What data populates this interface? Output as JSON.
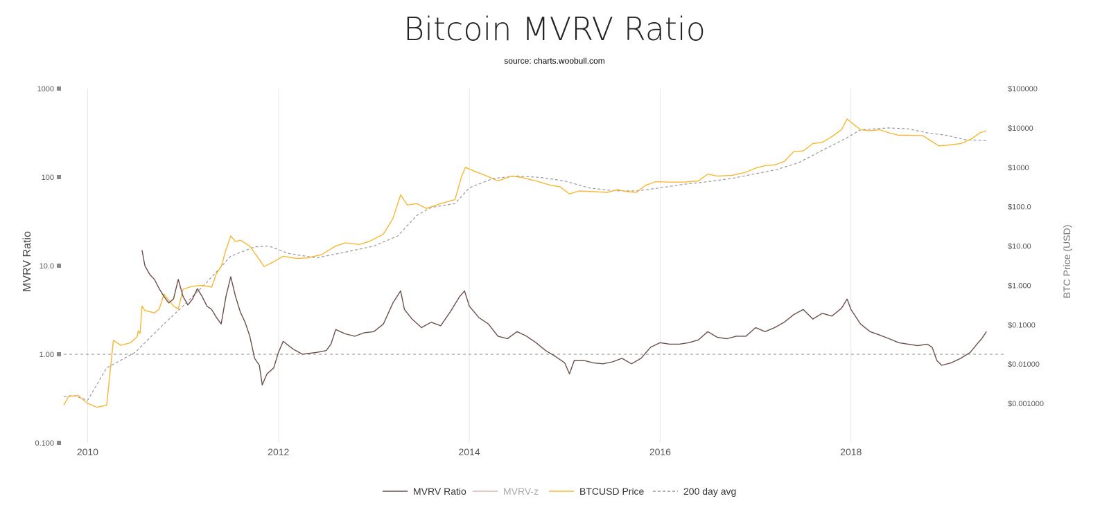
{
  "title": "Bitcoin MVRV Ratio",
  "subtitle": "source: charts.woobull.com",
  "chart_data": {
    "type": "line",
    "title": "Bitcoin MVRV Ratio",
    "subtitle": "source: charts.woobull.com",
    "ylabel_left": "MVRV Ratio",
    "ylabel_right": "BTC Price (USD)",
    "x_range": [
      2009.75,
      2019.6
    ],
    "y_left_log_range": [
      0.1,
      1000
    ],
    "y_right_log_range": [
      0.0001,
      100000
    ],
    "y_left_scale": "log",
    "y_right_scale": "log",
    "grid_x": true,
    "grid_y": false,
    "legend_position": "bottom-center",
    "x_ticks": [
      "2010",
      "2012",
      "2014",
      "2016",
      "2018"
    ],
    "x_tick_values": [
      2010,
      2012,
      2014,
      2016,
      2018
    ],
    "y_left_ticks": [
      "1000",
      "100",
      "10.0",
      "1.00",
      "0.100"
    ],
    "y_left_tick_values": [
      1000,
      100,
      10,
      1,
      0.1
    ],
    "y_right_ticks": [
      "$100000",
      "$10000",
      "$1000",
      "$100.0",
      "$10.00",
      "$1.000",
      "$0.1000",
      "$0.01000",
      "$0.001000"
    ],
    "y_right_tick_values": [
      100000,
      10000,
      1000,
      100,
      10,
      1,
      0.1,
      0.01,
      0.001
    ],
    "reference_line": {
      "axis": "left",
      "value": 1.0,
      "style": "dashed"
    },
    "series": [
      {
        "name": "MVRV Ratio",
        "axis": "left",
        "color": "#6b4f4a",
        "style": "solid",
        "points": [
          [
            2010.57,
            15
          ],
          [
            2010.6,
            10
          ],
          [
            2010.65,
            8
          ],
          [
            2010.7,
            7
          ],
          [
            2010.75,
            5.5
          ],
          [
            2010.8,
            4.5
          ],
          [
            2010.85,
            3.8
          ],
          [
            2010.9,
            4.2
          ],
          [
            2010.95,
            7
          ],
          [
            2011.0,
            4.5
          ],
          [
            2011.05,
            3.6
          ],
          [
            2011.1,
            4.2
          ],
          [
            2011.15,
            5.5
          ],
          [
            2011.2,
            4.5
          ],
          [
            2011.25,
            3.5
          ],
          [
            2011.3,
            3.2
          ],
          [
            2011.35,
            2.6
          ],
          [
            2011.4,
            2.2
          ],
          [
            2011.45,
            4.5
          ],
          [
            2011.5,
            7.5
          ],
          [
            2011.55,
            4.5
          ],
          [
            2011.6,
            3.0
          ],
          [
            2011.65,
            2.3
          ],
          [
            2011.7,
            1.6
          ],
          [
            2011.75,
            0.9
          ],
          [
            2011.8,
            0.75
          ],
          [
            2011.83,
            0.45
          ],
          [
            2011.88,
            0.6
          ],
          [
            2011.95,
            0.7
          ],
          [
            2012.0,
            1.05
          ],
          [
            2012.05,
            1.4
          ],
          [
            2012.15,
            1.15
          ],
          [
            2012.25,
            1.0
          ],
          [
            2012.4,
            1.05
          ],
          [
            2012.5,
            1.1
          ],
          [
            2012.55,
            1.3
          ],
          [
            2012.6,
            1.9
          ],
          [
            2012.7,
            1.7
          ],
          [
            2012.8,
            1.6
          ],
          [
            2012.9,
            1.75
          ],
          [
            2013.0,
            1.8
          ],
          [
            2013.1,
            2.2
          ],
          [
            2013.2,
            3.8
          ],
          [
            2013.28,
            5.2
          ],
          [
            2013.32,
            3.2
          ],
          [
            2013.4,
            2.5
          ],
          [
            2013.5,
            2.0
          ],
          [
            2013.6,
            2.3
          ],
          [
            2013.7,
            2.1
          ],
          [
            2013.8,
            3.0
          ],
          [
            2013.9,
            4.5
          ],
          [
            2013.95,
            5.2
          ],
          [
            2014.0,
            3.5
          ],
          [
            2014.1,
            2.6
          ],
          [
            2014.2,
            2.2
          ],
          [
            2014.3,
            1.6
          ],
          [
            2014.4,
            1.5
          ],
          [
            2014.5,
            1.8
          ],
          [
            2014.6,
            1.6
          ],
          [
            2014.7,
            1.35
          ],
          [
            2014.8,
            1.1
          ],
          [
            2014.9,
            0.95
          ],
          [
            2015.0,
            0.8
          ],
          [
            2015.05,
            0.6
          ],
          [
            2015.1,
            0.85
          ],
          [
            2015.2,
            0.85
          ],
          [
            2015.3,
            0.8
          ],
          [
            2015.4,
            0.78
          ],
          [
            2015.5,
            0.82
          ],
          [
            2015.6,
            0.9
          ],
          [
            2015.7,
            0.78
          ],
          [
            2015.8,
            0.9
          ],
          [
            2015.9,
            1.2
          ],
          [
            2016.0,
            1.35
          ],
          [
            2016.1,
            1.3
          ],
          [
            2016.2,
            1.3
          ],
          [
            2016.3,
            1.35
          ],
          [
            2016.4,
            1.45
          ],
          [
            2016.5,
            1.8
          ],
          [
            2016.6,
            1.55
          ],
          [
            2016.7,
            1.5
          ],
          [
            2016.8,
            1.6
          ],
          [
            2016.9,
            1.6
          ],
          [
            2017.0,
            2.0
          ],
          [
            2017.1,
            1.8
          ],
          [
            2017.2,
            2.0
          ],
          [
            2017.3,
            2.3
          ],
          [
            2017.4,
            2.8
          ],
          [
            2017.5,
            3.2
          ],
          [
            2017.6,
            2.5
          ],
          [
            2017.7,
            2.9
          ],
          [
            2017.8,
            2.7
          ],
          [
            2017.9,
            3.3
          ],
          [
            2017.96,
            4.2
          ],
          [
            2018.0,
            3.2
          ],
          [
            2018.1,
            2.2
          ],
          [
            2018.2,
            1.8
          ],
          [
            2018.3,
            1.65
          ],
          [
            2018.4,
            1.5
          ],
          [
            2018.5,
            1.35
          ],
          [
            2018.6,
            1.3
          ],
          [
            2018.7,
            1.25
          ],
          [
            2018.8,
            1.3
          ],
          [
            2018.85,
            1.2
          ],
          [
            2018.9,
            0.85
          ],
          [
            2018.95,
            0.75
          ],
          [
            2019.05,
            0.8
          ],
          [
            2019.15,
            0.9
          ],
          [
            2019.25,
            1.05
          ],
          [
            2019.32,
            1.3
          ],
          [
            2019.37,
            1.5
          ],
          [
            2019.42,
            1.8
          ]
        ]
      },
      {
        "name": "MVRV-z",
        "axis": "left",
        "color": "#e0b4ae",
        "style": "solid",
        "points": []
      },
      {
        "name": "BTCUSD Price",
        "axis": "right",
        "color": "#f7b731",
        "style": "solid",
        "points": [
          [
            2009.75,
            0.0009
          ],
          [
            2009.8,
            0.0015
          ],
          [
            2009.9,
            0.0016
          ],
          [
            2010.0,
            0.001
          ],
          [
            2010.1,
            0.0008
          ],
          [
            2010.2,
            0.0009
          ],
          [
            2010.27,
            0.04
          ],
          [
            2010.35,
            0.03
          ],
          [
            2010.45,
            0.035
          ],
          [
            2010.52,
            0.05
          ],
          [
            2010.53,
            0.07
          ],
          [
            2010.55,
            0.06
          ],
          [
            2010.57,
            0.3
          ],
          [
            2010.6,
            0.23
          ],
          [
            2010.7,
            0.2
          ],
          [
            2010.75,
            0.25
          ],
          [
            2010.8,
            0.6
          ],
          [
            2010.9,
            0.3
          ],
          [
            2010.95,
            0.25
          ],
          [
            2011.0,
            0.8
          ],
          [
            2011.1,
            0.95
          ],
          [
            2011.2,
            1.0
          ],
          [
            2011.3,
            0.9
          ],
          [
            2011.35,
            2.0
          ],
          [
            2011.4,
            3.0
          ],
          [
            2011.45,
            8.0
          ],
          [
            2011.5,
            18
          ],
          [
            2011.55,
            13
          ],
          [
            2011.6,
            14
          ],
          [
            2011.7,
            10
          ],
          [
            2011.8,
            4.5
          ],
          [
            2011.85,
            3.0
          ],
          [
            2011.95,
            4.0
          ],
          [
            2012.05,
            5.5
          ],
          [
            2012.2,
            4.8
          ],
          [
            2012.3,
            5.0
          ],
          [
            2012.45,
            6.0
          ],
          [
            2012.6,
            10
          ],
          [
            2012.7,
            12
          ],
          [
            2012.85,
            11
          ],
          [
            2012.95,
            13
          ],
          [
            2013.1,
            20
          ],
          [
            2013.2,
            50
          ],
          [
            2013.28,
            200
          ],
          [
            2013.35,
            110
          ],
          [
            2013.45,
            120
          ],
          [
            2013.55,
            90
          ],
          [
            2013.7,
            120
          ],
          [
            2013.85,
            150
          ],
          [
            2013.92,
            600
          ],
          [
            2013.96,
            1000
          ],
          [
            2014.05,
            800
          ],
          [
            2014.15,
            650
          ],
          [
            2014.3,
            450
          ],
          [
            2014.45,
            600
          ],
          [
            2014.55,
            550
          ],
          [
            2014.7,
            450
          ],
          [
            2014.85,
            350
          ],
          [
            2014.95,
            320
          ],
          [
            2015.05,
            210
          ],
          [
            2015.15,
            250
          ],
          [
            2015.3,
            240
          ],
          [
            2015.45,
            230
          ],
          [
            2015.55,
            270
          ],
          [
            2015.65,
            240
          ],
          [
            2015.75,
            230
          ],
          [
            2015.85,
            350
          ],
          [
            2015.95,
            430
          ],
          [
            2016.1,
            420
          ],
          [
            2016.25,
            420
          ],
          [
            2016.4,
            450
          ],
          [
            2016.5,
            670
          ],
          [
            2016.6,
            600
          ],
          [
            2016.75,
            620
          ],
          [
            2016.9,
            750
          ],
          [
            2017.0,
            950
          ],
          [
            2017.1,
            1100
          ],
          [
            2017.2,
            1150
          ],
          [
            2017.3,
            1400
          ],
          [
            2017.4,
            2500
          ],
          [
            2017.5,
            2600
          ],
          [
            2017.6,
            4000
          ],
          [
            2017.7,
            4300
          ],
          [
            2017.8,
            6000
          ],
          [
            2017.9,
            9000
          ],
          [
            2017.96,
            17000
          ],
          [
            2018.0,
            14000
          ],
          [
            2018.1,
            9000
          ],
          [
            2018.2,
            8500
          ],
          [
            2018.3,
            9000
          ],
          [
            2018.4,
            7500
          ],
          [
            2018.5,
            6500
          ],
          [
            2018.6,
            6500
          ],
          [
            2018.75,
            6400
          ],
          [
            2018.85,
            4500
          ],
          [
            2018.92,
            3500
          ],
          [
            2019.0,
            3600
          ],
          [
            2019.15,
            4000
          ],
          [
            2019.25,
            5000
          ],
          [
            2019.35,
            7500
          ],
          [
            2019.42,
            8500
          ]
        ]
      },
      {
        "name": "200 day avg",
        "axis": "right",
        "color": "#999999",
        "style": "dashed",
        "points": [
          [
            2009.75,
            0.0015
          ],
          [
            2009.85,
            0.0016
          ],
          [
            2010.0,
            0.0012
          ],
          [
            2010.2,
            0.008
          ],
          [
            2010.5,
            0.02
          ],
          [
            2010.75,
            0.08
          ],
          [
            2011.0,
            0.3
          ],
          [
            2011.25,
            1.2
          ],
          [
            2011.5,
            5.5
          ],
          [
            2011.75,
            9.5
          ],
          [
            2011.9,
            10
          ],
          [
            2012.1,
            6.5
          ],
          [
            2012.4,
            5.0
          ],
          [
            2012.7,
            7.0
          ],
          [
            2013.0,
            10
          ],
          [
            2013.25,
            18
          ],
          [
            2013.45,
            60
          ],
          [
            2013.6,
            95
          ],
          [
            2013.85,
            120
          ],
          [
            2014.0,
            300
          ],
          [
            2014.25,
            520
          ],
          [
            2014.5,
            600
          ],
          [
            2014.75,
            550
          ],
          [
            2015.0,
            450
          ],
          [
            2015.25,
            300
          ],
          [
            2015.5,
            255
          ],
          [
            2015.75,
            250
          ],
          [
            2016.0,
            300
          ],
          [
            2016.25,
            370
          ],
          [
            2016.5,
            430
          ],
          [
            2016.75,
            520
          ],
          [
            2016.95,
            650
          ],
          [
            2017.2,
            850
          ],
          [
            2017.45,
            1300
          ],
          [
            2017.7,
            2700
          ],
          [
            2017.95,
            5500
          ],
          [
            2018.1,
            9000
          ],
          [
            2018.4,
            10000
          ],
          [
            2018.6,
            9500
          ],
          [
            2018.8,
            7500
          ],
          [
            2019.0,
            6500
          ],
          [
            2019.2,
            5000
          ],
          [
            2019.42,
            4800
          ]
        ]
      }
    ]
  },
  "legend": [
    {
      "label": "MVRV Ratio",
      "color": "#6b4f4a",
      "style": "solid",
      "muted": false
    },
    {
      "label": "MVRV-z",
      "color": "#e0b4ae",
      "style": "solid",
      "muted": true
    },
    {
      "label": "BTCUSD Price",
      "color": "#f7b731",
      "style": "solid",
      "muted": false
    },
    {
      "label": "200 day avg",
      "color": "#999999",
      "style": "dashed",
      "muted": false
    }
  ]
}
